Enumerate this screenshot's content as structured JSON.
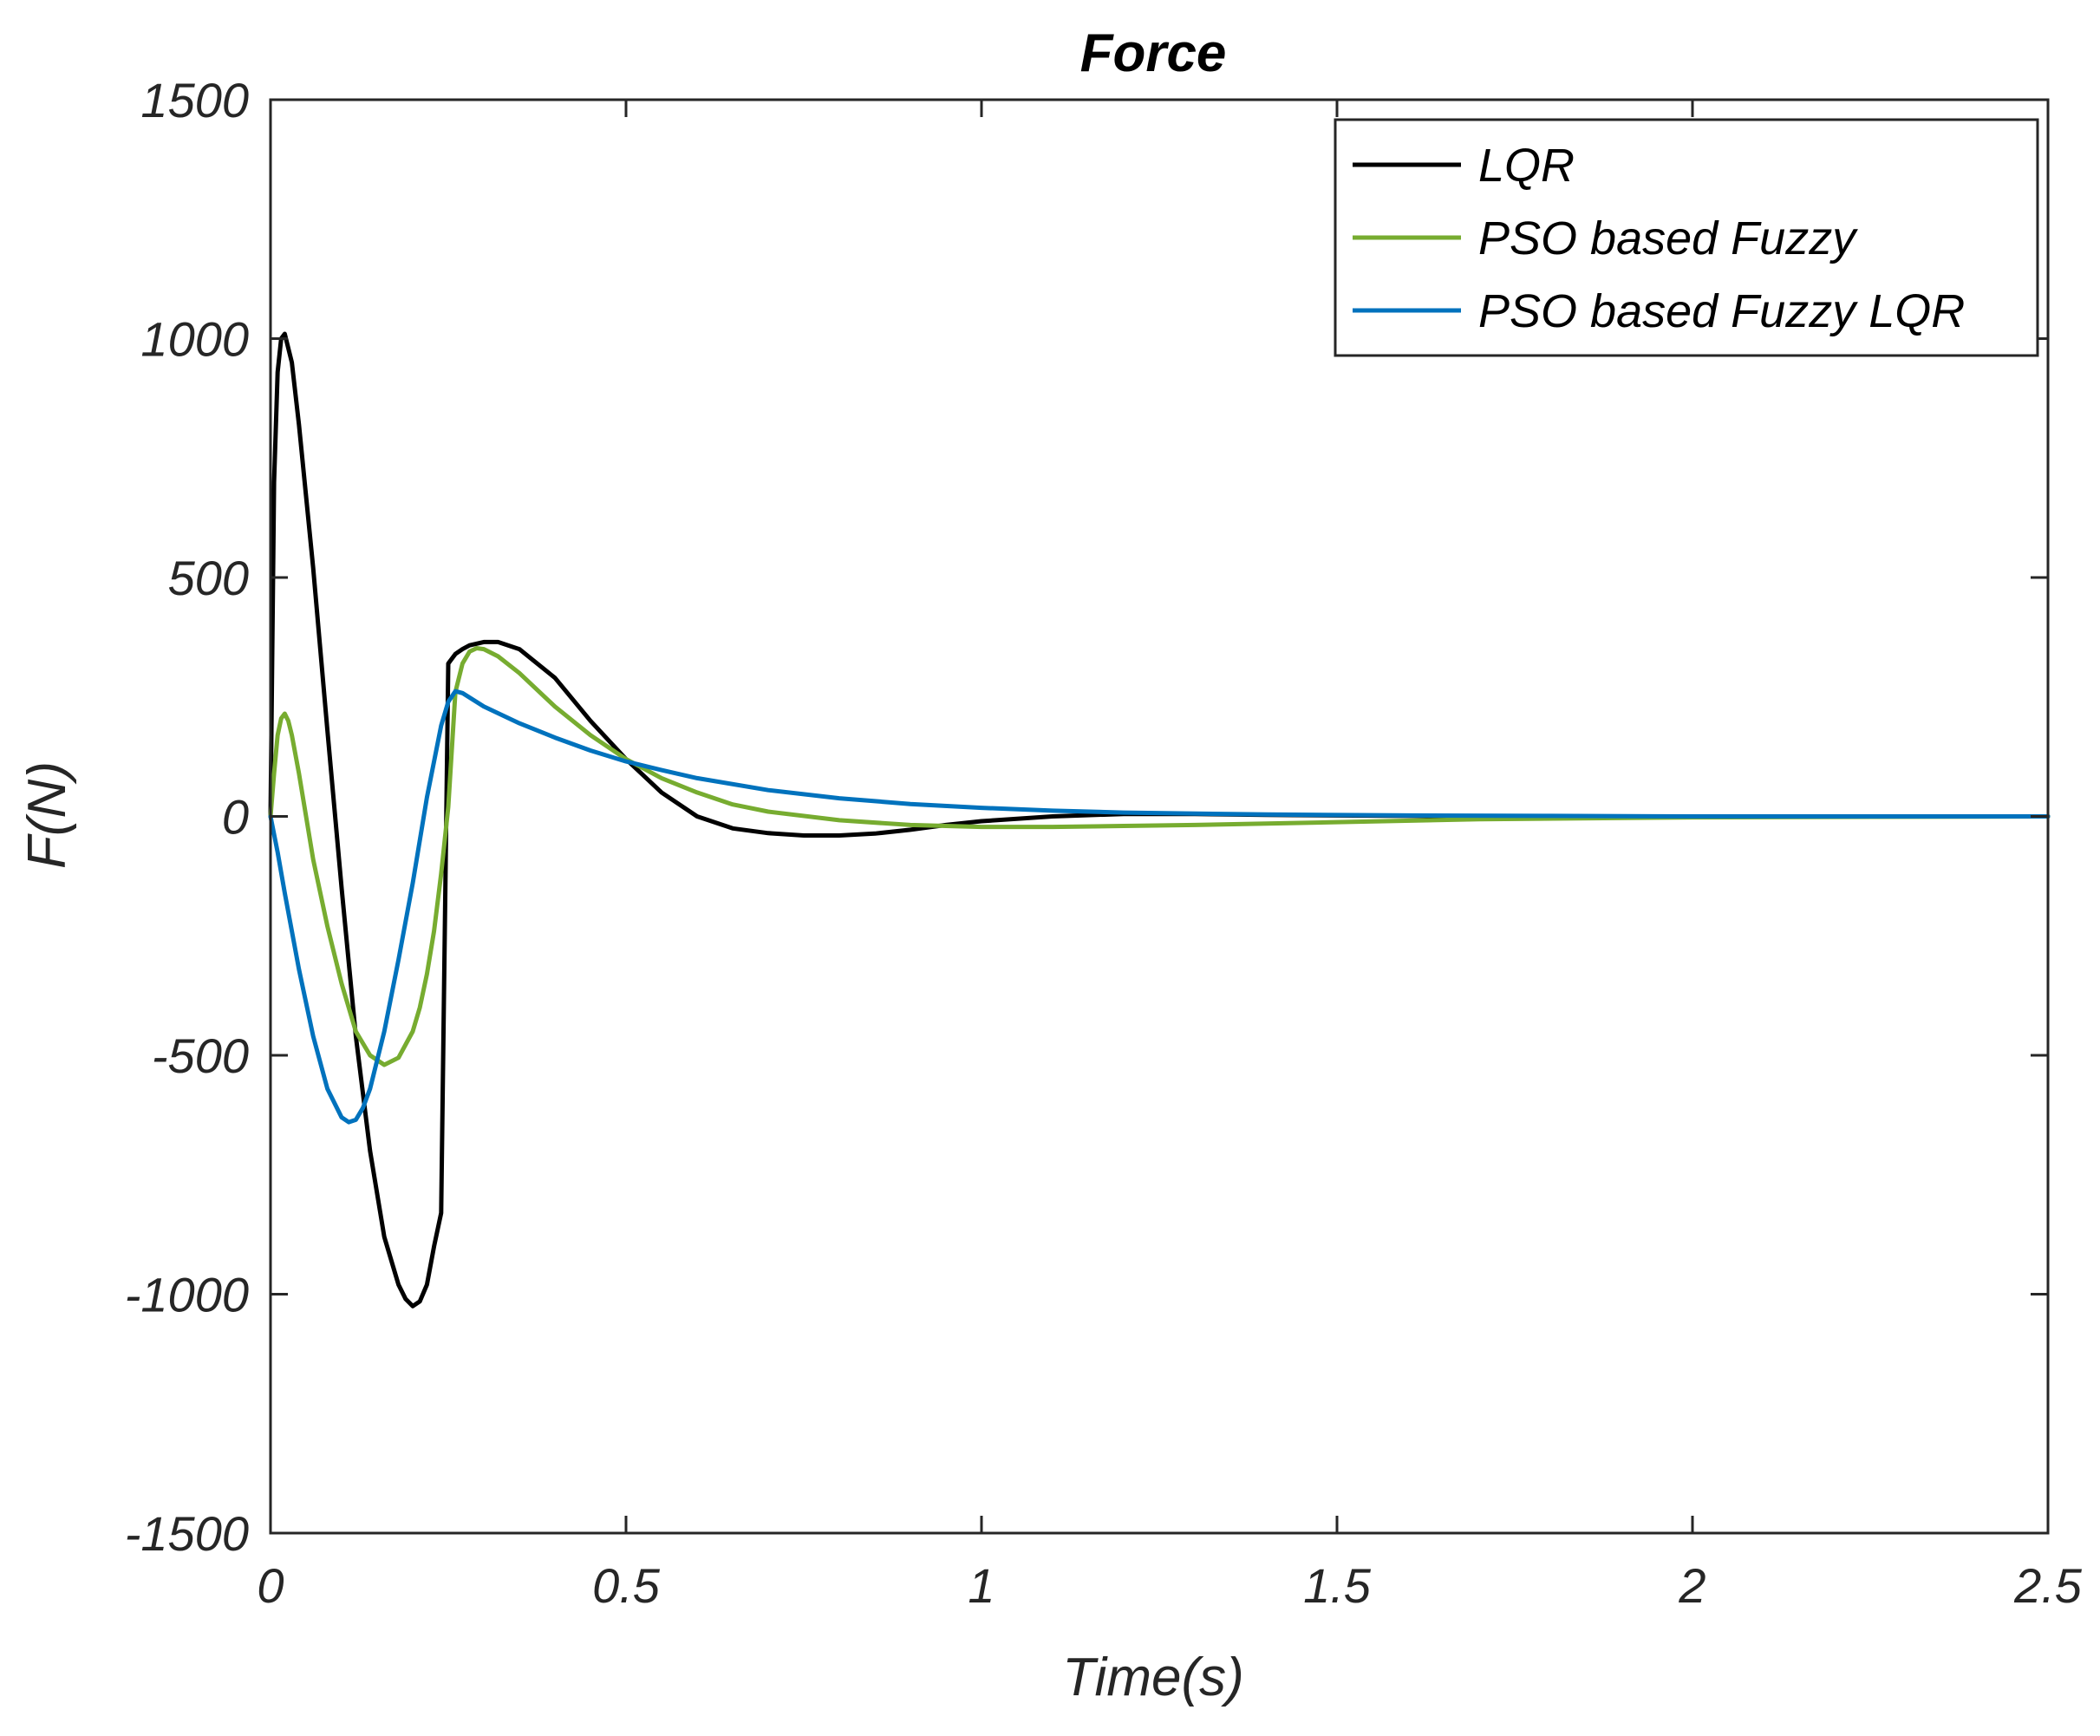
{
  "chart_data": {
    "type": "line",
    "title": "Force",
    "xlabel": "Time(s)",
    "ylabel": "F(N)",
    "xlim": [
      0,
      2.5
    ],
    "ylim": [
      -1500,
      1500
    ],
    "xticks": [
      0,
      0.5,
      1,
      1.5,
      2,
      2.5
    ],
    "xtick_labels": [
      "0",
      "0.5",
      "1",
      "1.5",
      "2",
      "2.5"
    ],
    "yticks": [
      -1500,
      -1000,
      -500,
      0,
      500,
      1000,
      1500
    ],
    "ytick_labels": [
      "-1500",
      "-1000",
      "-500",
      "0",
      "500",
      "1000",
      "1500"
    ],
    "grid": false,
    "legend_position": "top-right",
    "series": [
      {
        "name": "LQR",
        "color": "#000000",
        "x": [
          0,
          0.005,
          0.01,
          0.015,
          0.02,
          0.03,
          0.04,
          0.06,
          0.08,
          0.1,
          0.12,
          0.14,
          0.16,
          0.18,
          0.19,
          0.2,
          0.21,
          0.22,
          0.23,
          0.24,
          0.25,
          0.26,
          0.27,
          0.28,
          0.3,
          0.32,
          0.35,
          0.4,
          0.45,
          0.5,
          0.55,
          0.6,
          0.65,
          0.7,
          0.75,
          0.8,
          0.85,
          0.9,
          0.95,
          1.0,
          1.1,
          1.2,
          1.3,
          1.4,
          1.5,
          1.6,
          1.8,
          2.0,
          2.2,
          2.5
        ],
        "values": [
          0,
          700,
          930,
          1000,
          1010,
          950,
          820,
          520,
          180,
          -150,
          -460,
          -700,
          -880,
          -980,
          -1010,
          -1025,
          -1015,
          -980,
          -900,
          -830,
          320,
          340,
          350,
          358,
          365,
          365,
          350,
          290,
          200,
          120,
          50,
          0,
          -25,
          -35,
          -40,
          -40,
          -36,
          -28,
          -18,
          -10,
          0,
          5,
          5,
          3,
          2,
          1,
          0,
          0,
          0,
          0
        ]
      },
      {
        "name": "PSO based Fuzzy",
        "color": "#77ac30",
        "x": [
          0,
          0.005,
          0.01,
          0.015,
          0.02,
          0.025,
          0.03,
          0.04,
          0.05,
          0.06,
          0.08,
          0.1,
          0.12,
          0.14,
          0.16,
          0.18,
          0.2,
          0.21,
          0.22,
          0.23,
          0.24,
          0.25,
          0.26,
          0.27,
          0.28,
          0.29,
          0.3,
          0.32,
          0.35,
          0.4,
          0.45,
          0.5,
          0.55,
          0.6,
          0.65,
          0.7,
          0.8,
          0.9,
          1.0,
          1.1,
          1.2,
          1.3,
          1.5,
          1.7,
          2.0,
          2.5
        ],
        "values": [
          0,
          90,
          170,
          205,
          215,
          200,
          170,
          90,
          0,
          -90,
          -230,
          -350,
          -450,
          -500,
          -520,
          -505,
          -450,
          -400,
          -330,
          -240,
          -120,
          20,
          260,
          320,
          345,
          352,
          350,
          335,
          300,
          230,
          170,
          120,
          80,
          50,
          25,
          10,
          -8,
          -18,
          -22,
          -22,
          -20,
          -18,
          -12,
          -6,
          -2,
          0
        ]
      },
      {
        "name": "PSO based Fuzzy LQR",
        "color": "#0072bd",
        "x": [
          0,
          0.01,
          0.02,
          0.04,
          0.06,
          0.08,
          0.1,
          0.11,
          0.12,
          0.13,
          0.14,
          0.16,
          0.18,
          0.2,
          0.22,
          0.24,
          0.25,
          0.26,
          0.27,
          0.3,
          0.35,
          0.4,
          0.45,
          0.5,
          0.55,
          0.6,
          0.7,
          0.8,
          0.9,
          1.0,
          1.1,
          1.2,
          1.4,
          1.6,
          1.8,
          2.0,
          2.5
        ],
        "values": [
          0,
          -75,
          -160,
          -320,
          -460,
          -570,
          -630,
          -640,
          -635,
          -610,
          -570,
          -450,
          -300,
          -140,
          40,
          190,
          240,
          262,
          258,
          230,
          195,
          165,
          138,
          115,
          97,
          80,
          55,
          38,
          26,
          18,
          12,
          8,
          4,
          2,
          1,
          0,
          0
        ]
      }
    ]
  }
}
